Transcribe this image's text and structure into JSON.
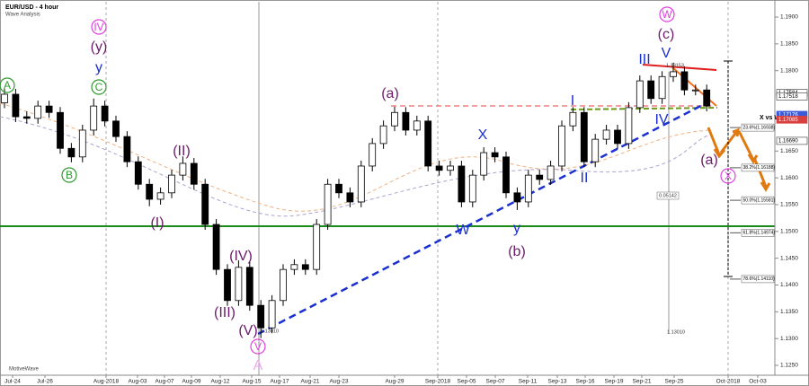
{
  "chart_data": {
    "type": "candlestick",
    "title": "EUR/USD - 4 hour",
    "subtitle": "Wave Analysis",
    "footer": "MotiveWave",
    "open": [
      1.174,
      1.1756,
      1.1714,
      1.1711,
      1.1734,
      1.1722,
      1.1655,
      1.1639,
      1.1689,
      1.1734,
      1.1706,
      1.1677,
      1.163,
      1.1588,
      1.156,
      1.1572,
      1.1605,
      1.1627,
      1.1588,
      1.1513,
      1.1429,
      1.1371,
      1.1433,
      1.1362,
      1.132,
      1.1371,
      1.1429,
      1.1438,
      1.1429,
      1.1513,
      1.1588,
      1.1572,
      1.1555,
      1.1622,
      1.1664,
      1.1697,
      1.1722,
      1.1689,
      1.1706,
      1.1622,
      1.1614,
      1.1622,
      1.1555,
      1.1605,
      1.1647,
      1.1639,
      1.1572,
      1.1555,
      1.1605,
      1.1597,
      1.1622,
      1.1697,
      1.1722,
      1.163,
      1.1672,
      1.1689,
      1.1664,
      1.1731,
      1.1781,
      1.1748,
      1.1789,
      1.1798,
      1.1764,
      1.1764
    ],
    "high": [
      1.1766,
      1.1766,
      1.1724,
      1.1744,
      1.1744,
      1.1732,
      1.1665,
      1.1699,
      1.1748,
      1.1744,
      1.1716,
      1.1687,
      1.164,
      1.1598,
      1.1582,
      1.1615,
      1.164,
      1.1637,
      1.1598,
      1.1523,
      1.1439,
      1.1446,
      1.1443,
      1.1372,
      1.1381,
      1.1439,
      1.1448,
      1.1448,
      1.1523,
      1.1598,
      1.1598,
      1.1582,
      1.1632,
      1.1674,
      1.1707,
      1.1733,
      1.1732,
      1.1716,
      1.1716,
      1.1632,
      1.1632,
      1.1632,
      1.1615,
      1.1657,
      1.1657,
      1.1649,
      1.1582,
      1.1615,
      1.1615,
      1.1632,
      1.1707,
      1.1732,
      1.1732,
      1.1682,
      1.1699,
      1.1699,
      1.1741,
      1.1791,
      1.1791,
      1.1799,
      1.1815,
      1.1808,
      1.1774,
      1.1774
    ],
    "low": [
      1.173,
      1.1704,
      1.1701,
      1.1701,
      1.1712,
      1.1645,
      1.1629,
      1.1629,
      1.1679,
      1.1696,
      1.1667,
      1.162,
      1.1578,
      1.1547,
      1.155,
      1.1562,
      1.1595,
      1.1578,
      1.1503,
      1.1419,
      1.1361,
      1.1361,
      1.1352,
      1.1301,
      1.131,
      1.1361,
      1.1419,
      1.1419,
      1.1419,
      1.1503,
      1.1562,
      1.1545,
      1.1545,
      1.1612,
      1.1654,
      1.1687,
      1.1679,
      1.1679,
      1.1612,
      1.1604,
      1.1604,
      1.1545,
      1.1545,
      1.1595,
      1.1629,
      1.1562,
      1.154,
      1.1545,
      1.1587,
      1.1587,
      1.1612,
      1.1687,
      1.162,
      1.162,
      1.1662,
      1.1654,
      1.1654,
      1.1721,
      1.1738,
      1.1738,
      1.1779,
      1.1754,
      1.1754,
      1.1724
    ],
    "close": [
      1.1756,
      1.1714,
      1.1711,
      1.1734,
      1.1722,
      1.1655,
      1.1639,
      1.1689,
      1.1734,
      1.1706,
      1.1677,
      1.163,
      1.1588,
      1.156,
      1.1572,
      1.1605,
      1.1627,
      1.1588,
      1.1513,
      1.1429,
      1.1371,
      1.1433,
      1.1362,
      1.132,
      1.1371,
      1.1429,
      1.1438,
      1.1429,
      1.1513,
      1.1588,
      1.1572,
      1.1555,
      1.1622,
      1.1664,
      1.1697,
      1.1722,
      1.1689,
      1.1706,
      1.1622,
      1.1614,
      1.1622,
      1.1555,
      1.1605,
      1.1647,
      1.1639,
      1.1572,
      1.1555,
      1.1605,
      1.1597,
      1.1622,
      1.1697,
      1.1722,
      1.163,
      1.1672,
      1.1689,
      1.1664,
      1.1731,
      1.1781,
      1.1748,
      1.1789,
      1.1798,
      1.1764,
      1.1764,
      1.1734
    ],
    "up_color": "#ffffff",
    "down_color": "#000000",
    "ylim": [
      1.12316,
      1.19235
    ],
    "yticks": [
      {
        "value": 1.19,
        "label": "1.1900"
      },
      {
        "value": 1.185,
        "label": "1.1850"
      },
      {
        "value": 1.18,
        "label": "1.1800"
      },
      {
        "value": 1.165,
        "label": "1.1650"
      },
      {
        "value": 1.16,
        "label": "1.1600"
      },
      {
        "value": 1.155,
        "label": "1.1550"
      },
      {
        "value": 1.15,
        "label": "1.1500"
      },
      {
        "value": 1.145,
        "label": "1.1450"
      },
      {
        "value": 1.14,
        "label": "1.1400"
      },
      {
        "value": 1.135,
        "label": "1.1350"
      },
      {
        "value": 1.13,
        "label": "1.1300"
      },
      {
        "value": 1.125,
        "label": "1.1250"
      }
    ],
    "price_boxes": [
      {
        "value": 1.17584,
        "label": "1.17584",
        "color": "#ffffff"
      },
      {
        "value": 1.17518,
        "label": "1.17518",
        "color": "#ffffff"
      },
      {
        "value": 1.17176,
        "label": "1.17176",
        "color": "#3b5bdb"
      },
      {
        "value": 1.17085,
        "label": "1.17085",
        "color": "#d94040"
      },
      {
        "value": 1.1669,
        "label": "1.16690",
        "color": "#ffffff"
      }
    ],
    "fibonacci": {
      "title": "X vs W",
      "levels": [
        {
          "value": 1.16938,
          "label": "23.6%(1.16938)"
        },
        {
          "value": 1.16188,
          "label": "38.2%(1.16188)"
        },
        {
          "value": 1.15581,
          "label": "50.0%(1.15581)"
        },
        {
          "value": 1.14974,
          "label": "61.8%(1.14974)"
        },
        {
          "value": 1.1411,
          "label": "78.6%(1.14110)"
        }
      ]
    },
    "x_labels": [
      "Jul-24",
      "Jul-26",
      "Aug-2018",
      "Aug-03",
      "Aug-07",
      "Aug-09",
      "Aug-12",
      "Aug-15",
      "Aug-17",
      "Aug-21",
      "Aug-23",
      "Aug-29",
      "Sep-2018",
      "Sep-05",
      "Sep-07",
      "Sep-11",
      "Sep-13",
      "Sep-16",
      "Sep-19",
      "Sep-21",
      "Sep-25",
      "Oct-2018",
      "Oct-03"
    ],
    "measure_labels": [
      "1.18153",
      "0.05142",
      "1.13010",
      "1.13010"
    ],
    "annotations": [
      {
        "text": "IV",
        "color": "#e040e0",
        "circled": true
      },
      {
        "text": "(y)",
        "color": "#6a1b6a",
        "circled": false
      },
      {
        "text": "y",
        "color": "#1a2fd0",
        "circled": false
      },
      {
        "text": "C",
        "color": "#2e9a2e",
        "circled": true
      },
      {
        "text": "A",
        "color": "#2e9a2e",
        "circled": true
      },
      {
        "text": "B",
        "color": "#2e9a2e",
        "circled": true
      },
      {
        "text": "(I)",
        "color": "#6a1b6a",
        "circled": false
      },
      {
        "text": "(II)",
        "color": "#6a1b6a",
        "circled": false
      },
      {
        "text": "(III)",
        "color": "#6a1b6a",
        "circled": false
      },
      {
        "text": "(IV)",
        "color": "#6a1b6a",
        "circled": false
      },
      {
        "text": "(V)",
        "color": "#6a1b6a",
        "circled": false
      },
      {
        "text": "V",
        "color": "#e040e0",
        "circled": true
      },
      {
        "text": "A",
        "color": "#f0a8f0",
        "circled": false
      },
      {
        "text": "(a)",
        "color": "#6a1b6a",
        "circled": false
      },
      {
        "text": "X",
        "color": "#1a2fd0",
        "circled": false
      },
      {
        "text": "W",
        "color": "#1a2fd0",
        "circled": false
      },
      {
        "text": "y",
        "color": "#1a2fd0",
        "circled": false
      },
      {
        "text": "(b)",
        "color": "#6a1b6a",
        "circled": false
      },
      {
        "text": "I",
        "color": "#1a2fd0",
        "circled": false
      },
      {
        "text": "II",
        "color": "#1a2fd0",
        "circled": false
      },
      {
        "text": "III",
        "color": "#1a2fd0",
        "circled": false
      },
      {
        "text": "IV",
        "color": "#1a2fd0",
        "circled": false
      },
      {
        "text": "V",
        "color": "#1a2fd0",
        "circled": false
      },
      {
        "text": "(c)",
        "color": "#6a1b6a",
        "circled": false
      },
      {
        "text": "W",
        "color": "#e040e0",
        "circled": true
      },
      {
        "text": "(a)",
        "color": "#6a1b6a",
        "circled": false
      },
      {
        "text": "X",
        "color": "#e040e0",
        "circled": true
      }
    ]
  }
}
